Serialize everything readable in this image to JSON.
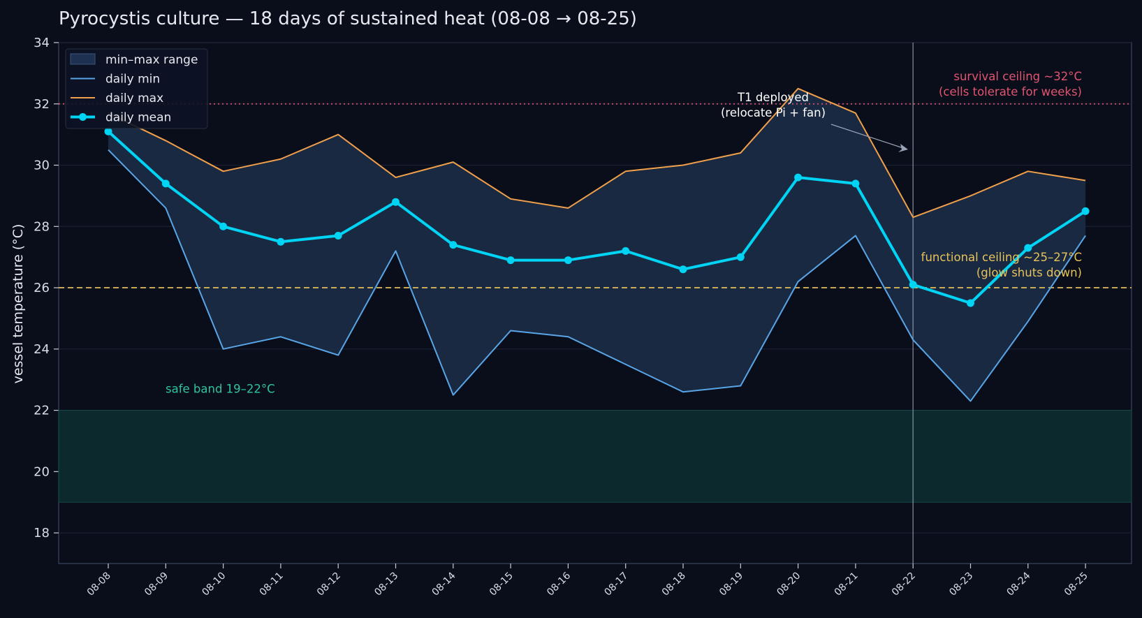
{
  "chart_data": {
    "type": "line",
    "title": "Pyrocystis culture — 18 days of sustained heat (08-08 → 08-25)",
    "xlabel": "",
    "ylabel": "vessel temperature (°C)",
    "ylim": [
      17,
      34
    ],
    "yticks": [
      18,
      20,
      22,
      24,
      26,
      28,
      30,
      32,
      34
    ],
    "grid": true,
    "legend_position": "top-left",
    "categories": [
      "08-08",
      "08-09",
      "08-10",
      "08-11",
      "08-12",
      "08-13",
      "08-14",
      "08-15",
      "08-16",
      "08-17",
      "08-18",
      "08-19",
      "08-20",
      "08-21",
      "08-22",
      "08-23",
      "08-24",
      "08-25"
    ],
    "series": [
      {
        "name": "daily min",
        "color": "#58a6e8",
        "values": [
          30.5,
          28.6,
          24.0,
          24.4,
          23.8,
          27.2,
          22.5,
          24.6,
          24.4,
          23.5,
          22.6,
          22.8,
          26.2,
          27.7,
          24.3,
          22.3,
          24.9,
          27.7
        ]
      },
      {
        "name": "daily max",
        "color": "#f0a04b",
        "values": [
          31.7,
          30.8,
          29.8,
          30.2,
          31.0,
          29.6,
          30.1,
          28.9,
          28.6,
          29.8,
          30.0,
          30.4,
          32.5,
          31.7,
          28.3,
          29.0,
          29.8,
          29.5
        ]
      },
      {
        "name": "daily mean",
        "color": "#00d4f5",
        "values": [
          31.1,
          29.4,
          28.0,
          27.5,
          27.7,
          28.8,
          27.4,
          26.9,
          26.9,
          27.2,
          26.6,
          27.0,
          29.6,
          29.4,
          26.1,
          25.5,
          27.3,
          28.5
        ]
      }
    ],
    "range_band": {
      "name": "min–max range",
      "color": "#1b2b44"
    },
    "safe_band": {
      "range": [
        19,
        22
      ],
      "label": "safe band 19–22°C",
      "color": "#2ec4a0"
    },
    "reference_lines": [
      {
        "y": 32,
        "style": "dotted",
        "color": "#e05570",
        "label": [
          "survival ceiling ~32°C",
          "(cells tolerate for weeks)"
        ]
      },
      {
        "y": 26,
        "style": "dashed",
        "color": "#e8c25a",
        "label": [
          "functional ceiling ~25–27°C",
          "(glow shuts down)"
        ]
      }
    ],
    "event": {
      "x": "08-22",
      "label": [
        "T1 deployed",
        "(relocate Pi + fan)"
      ]
    }
  }
}
